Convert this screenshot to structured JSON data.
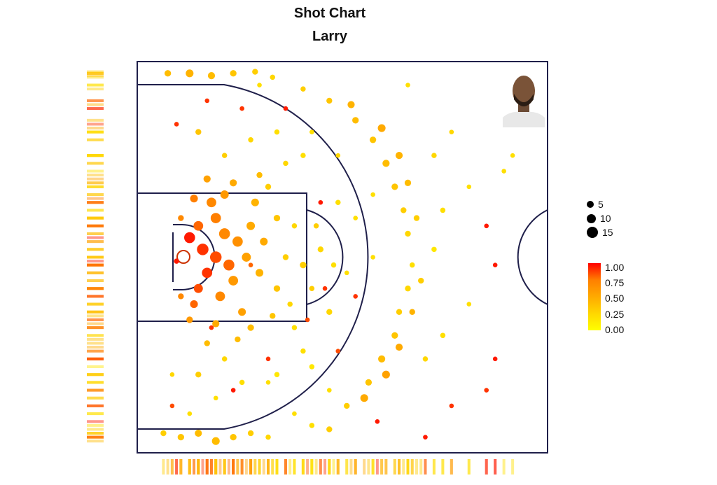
{
  "chart_data": {
    "type": "scatter",
    "title": "Shot Chart",
    "subtitle": "Larry",
    "size_legend": {
      "values": [
        5,
        10,
        15
      ],
      "labels": [
        "5",
        "10",
        "15"
      ]
    },
    "color_legend": {
      "range": [
        0,
        1
      ],
      "labels": [
        "1.00",
        "0.75",
        "0.50",
        "0.25",
        "0.00"
      ],
      "colors": [
        "#ff0000",
        "#ff7f00",
        "#ffaa00",
        "#ffd700",
        "#ffff00"
      ]
    },
    "court": {
      "units": "feet",
      "x_range": [
        0,
        47
      ],
      "y_range": [
        0,
        50
      ],
      "basket": [
        5.25,
        25
      ]
    },
    "points": [
      [
        6.0,
        22.5,
        14,
        0.95
      ],
      [
        7.5,
        24,
        15,
        0.9
      ],
      [
        9,
        25,
        15,
        0.85
      ],
      [
        10.5,
        26,
        14,
        0.8
      ],
      [
        8,
        27,
        13,
        0.9
      ],
      [
        7,
        21,
        12,
        0.8
      ],
      [
        9,
        20,
        13,
        0.75
      ],
      [
        10,
        22,
        14,
        0.7
      ],
      [
        11.5,
        23,
        13,
        0.65
      ],
      [
        8.5,
        18,
        12,
        0.7
      ],
      [
        7,
        29,
        11,
        0.85
      ],
      [
        9.5,
        30,
        12,
        0.7
      ],
      [
        11,
        28,
        12,
        0.6
      ],
      [
        12.5,
        25,
        11,
        0.55
      ],
      [
        13,
        21,
        10,
        0.5
      ],
      [
        10,
        17,
        10,
        0.6
      ],
      [
        6.5,
        17.5,
        9,
        0.75
      ],
      [
        6.5,
        31,
        9,
        0.8
      ],
      [
        12,
        32,
        9,
        0.55
      ],
      [
        14,
        27,
        9,
        0.45
      ],
      [
        14.5,
        23,
        9,
        0.5
      ],
      [
        13.5,
        18,
        9,
        0.45
      ],
      [
        11,
        15.5,
        8,
        0.5
      ],
      [
        8,
        15,
        8,
        0.55
      ],
      [
        6,
        33,
        7,
        0.6
      ],
      [
        9,
        33.5,
        8,
        0.5
      ],
      [
        13,
        34,
        7,
        0.4
      ],
      [
        16,
        29,
        7,
        0.35
      ],
      [
        16,
        20,
        7,
        0.35
      ],
      [
        15,
        16,
        6,
        0.3
      ],
      [
        11.5,
        35.5,
        6,
        0.4
      ],
      [
        8,
        36,
        6,
        0.4
      ],
      [
        17,
        25,
        6,
        0.3
      ],
      [
        17.5,
        31,
        5,
        0.25
      ],
      [
        18,
        21,
        5,
        0.25
      ],
      [
        5,
        30,
        6,
        0.7
      ],
      [
        5,
        20,
        6,
        0.7
      ],
      [
        4.5,
        25.5,
        5,
        0.95
      ],
      [
        15.5,
        32.5,
        6,
        0.35
      ],
      [
        14,
        14.5,
        6,
        0.4
      ],
      [
        19,
        26,
        7,
        0.3
      ],
      [
        21,
        24,
        6,
        0.25
      ],
      [
        22.5,
        26,
        5,
        0.2
      ],
      [
        20,
        29,
        5,
        0.3
      ],
      [
        20.5,
        21,
        5,
        0.3
      ],
      [
        22,
        32,
        6,
        0.25
      ],
      [
        23,
        18,
        5,
        0.2
      ],
      [
        18,
        34,
        5,
        0.2
      ],
      [
        17,
        13,
        5,
        0.25
      ],
      [
        19,
        37,
        5,
        0.2
      ],
      [
        10,
        38,
        5,
        0.25
      ],
      [
        7,
        40,
        6,
        0.3
      ],
      [
        12,
        41,
        5,
        0.2
      ],
      [
        16,
        40,
        5,
        0.15
      ],
      [
        20,
        39,
        5,
        0.15
      ],
      [
        10,
        12,
        5,
        0.3
      ],
      [
        13,
        10,
        5,
        0.25
      ],
      [
        7,
        9,
        6,
        0.35
      ],
      [
        16,
        9,
        5,
        0.2
      ],
      [
        19,
        12,
        5,
        0.2
      ],
      [
        3,
        47.5,
        6,
        0.3
      ],
      [
        5,
        48,
        7,
        0.35
      ],
      [
        7,
        47.5,
        8,
        0.4
      ],
      [
        9,
        48.5,
        9,
        0.4
      ],
      [
        11,
        48,
        7,
        0.35
      ],
      [
        13,
        47.5,
        6,
        0.3
      ],
      [
        15,
        48,
        5,
        0.25
      ],
      [
        3.5,
        1.5,
        7,
        0.4
      ],
      [
        6,
        1.5,
        9,
        0.45
      ],
      [
        8.5,
        1.8,
        8,
        0.4
      ],
      [
        11,
        1.5,
        7,
        0.35
      ],
      [
        13.5,
        1.3,
        6,
        0.3
      ],
      [
        15.5,
        2,
        5,
        0.25
      ],
      [
        20,
        46.5,
        5,
        0.2
      ],
      [
        24,
        44,
        6,
        0.3
      ],
      [
        26.5,
        41,
        7,
        0.35
      ],
      [
        28,
        38,
        8,
        0.4
      ],
      [
        29.5,
        35,
        7,
        0.35
      ],
      [
        30,
        32,
        6,
        0.3
      ],
      [
        31,
        29,
        6,
        0.25
      ],
      [
        31.5,
        26,
        5,
        0.2
      ],
      [
        31,
        22,
        6,
        0.25
      ],
      [
        30.5,
        19,
        6,
        0.3
      ],
      [
        29.5,
        16,
        7,
        0.35
      ],
      [
        28.5,
        13,
        8,
        0.4
      ],
      [
        27,
        10,
        7,
        0.35
      ],
      [
        25,
        7.5,
        7,
        0.4
      ],
      [
        22,
        5,
        6,
        0.35
      ],
      [
        19,
        3.5,
        5,
        0.3
      ],
      [
        26,
        43,
        9,
        0.5
      ],
      [
        28.5,
        40,
        9,
        0.55
      ],
      [
        30,
        36.5,
        8,
        0.5
      ],
      [
        31.5,
        32,
        6,
        0.45
      ],
      [
        32.5,
        28,
        6,
        0.3
      ],
      [
        32,
        20,
        6,
        0.3
      ],
      [
        31,
        15.5,
        7,
        0.4
      ],
      [
        30,
        12,
        8,
        0.45
      ],
      [
        28,
        8.5,
        9,
        0.5
      ],
      [
        24.5,
        5.5,
        8,
        0.45
      ],
      [
        22,
        47,
        6,
        0.3
      ],
      [
        33,
        38,
        5,
        0.25
      ],
      [
        35,
        35,
        5,
        0.2
      ],
      [
        34,
        24,
        5,
        0.15
      ],
      [
        35,
        19,
        5,
        0.2
      ],
      [
        34,
        12,
        5,
        0.25
      ],
      [
        36,
        44,
        4,
        0.9
      ],
      [
        40,
        42,
        4,
        0.9
      ],
      [
        41,
        38,
        4,
        0.95
      ],
      [
        38,
        31,
        4,
        0.2
      ],
      [
        41,
        26,
        4,
        0.95
      ],
      [
        40,
        21,
        4,
        0.95
      ],
      [
        38,
        16,
        4,
        0.2
      ],
      [
        42,
        14,
        4,
        0.2
      ],
      [
        43,
        12,
        4,
        0.2
      ],
      [
        36,
        9,
        4,
        0.25
      ],
      [
        31,
        3,
        4,
        0.2
      ],
      [
        27.5,
        46,
        4,
        0.95
      ],
      [
        33,
        48,
        4,
        0.95
      ],
      [
        25,
        30,
        4,
        0.9
      ],
      [
        23,
        37,
        4,
        0.85
      ],
      [
        15,
        38,
        4,
        0.9
      ],
      [
        11,
        42,
        4,
        0.95
      ],
      [
        17,
        6,
        4,
        0.95
      ],
      [
        12,
        6,
        4,
        0.9
      ],
      [
        8,
        5,
        4,
        0.9
      ],
      [
        4.5,
        8,
        4,
        0.9
      ],
      [
        4,
        44,
        4,
        0.85
      ],
      [
        21.5,
        29,
        4,
        0.9
      ],
      [
        21,
        18,
        4,
        0.95
      ],
      [
        19.5,
        33,
        4,
        0.85
      ],
      [
        8.5,
        34,
        4,
        0.9
      ],
      [
        13,
        26,
        4,
        0.8
      ],
      [
        15,
        41,
        4,
        0.2
      ],
      [
        18,
        45,
        4,
        0.2
      ],
      [
        22,
        42,
        4,
        0.2
      ],
      [
        6,
        45,
        4,
        0.2
      ],
      [
        9,
        43,
        4,
        0.2
      ],
      [
        4,
        40,
        4,
        0.25
      ],
      [
        27,
        25,
        4,
        0.2
      ],
      [
        24,
        27,
        4,
        0.2
      ],
      [
        25,
        20,
        4,
        0.2
      ],
      [
        27,
        17,
        4,
        0.2
      ],
      [
        23,
        12,
        4,
        0.25
      ],
      [
        20,
        9,
        4,
        0.2
      ],
      [
        14,
        3,
        4,
        0.2
      ]
    ]
  }
}
